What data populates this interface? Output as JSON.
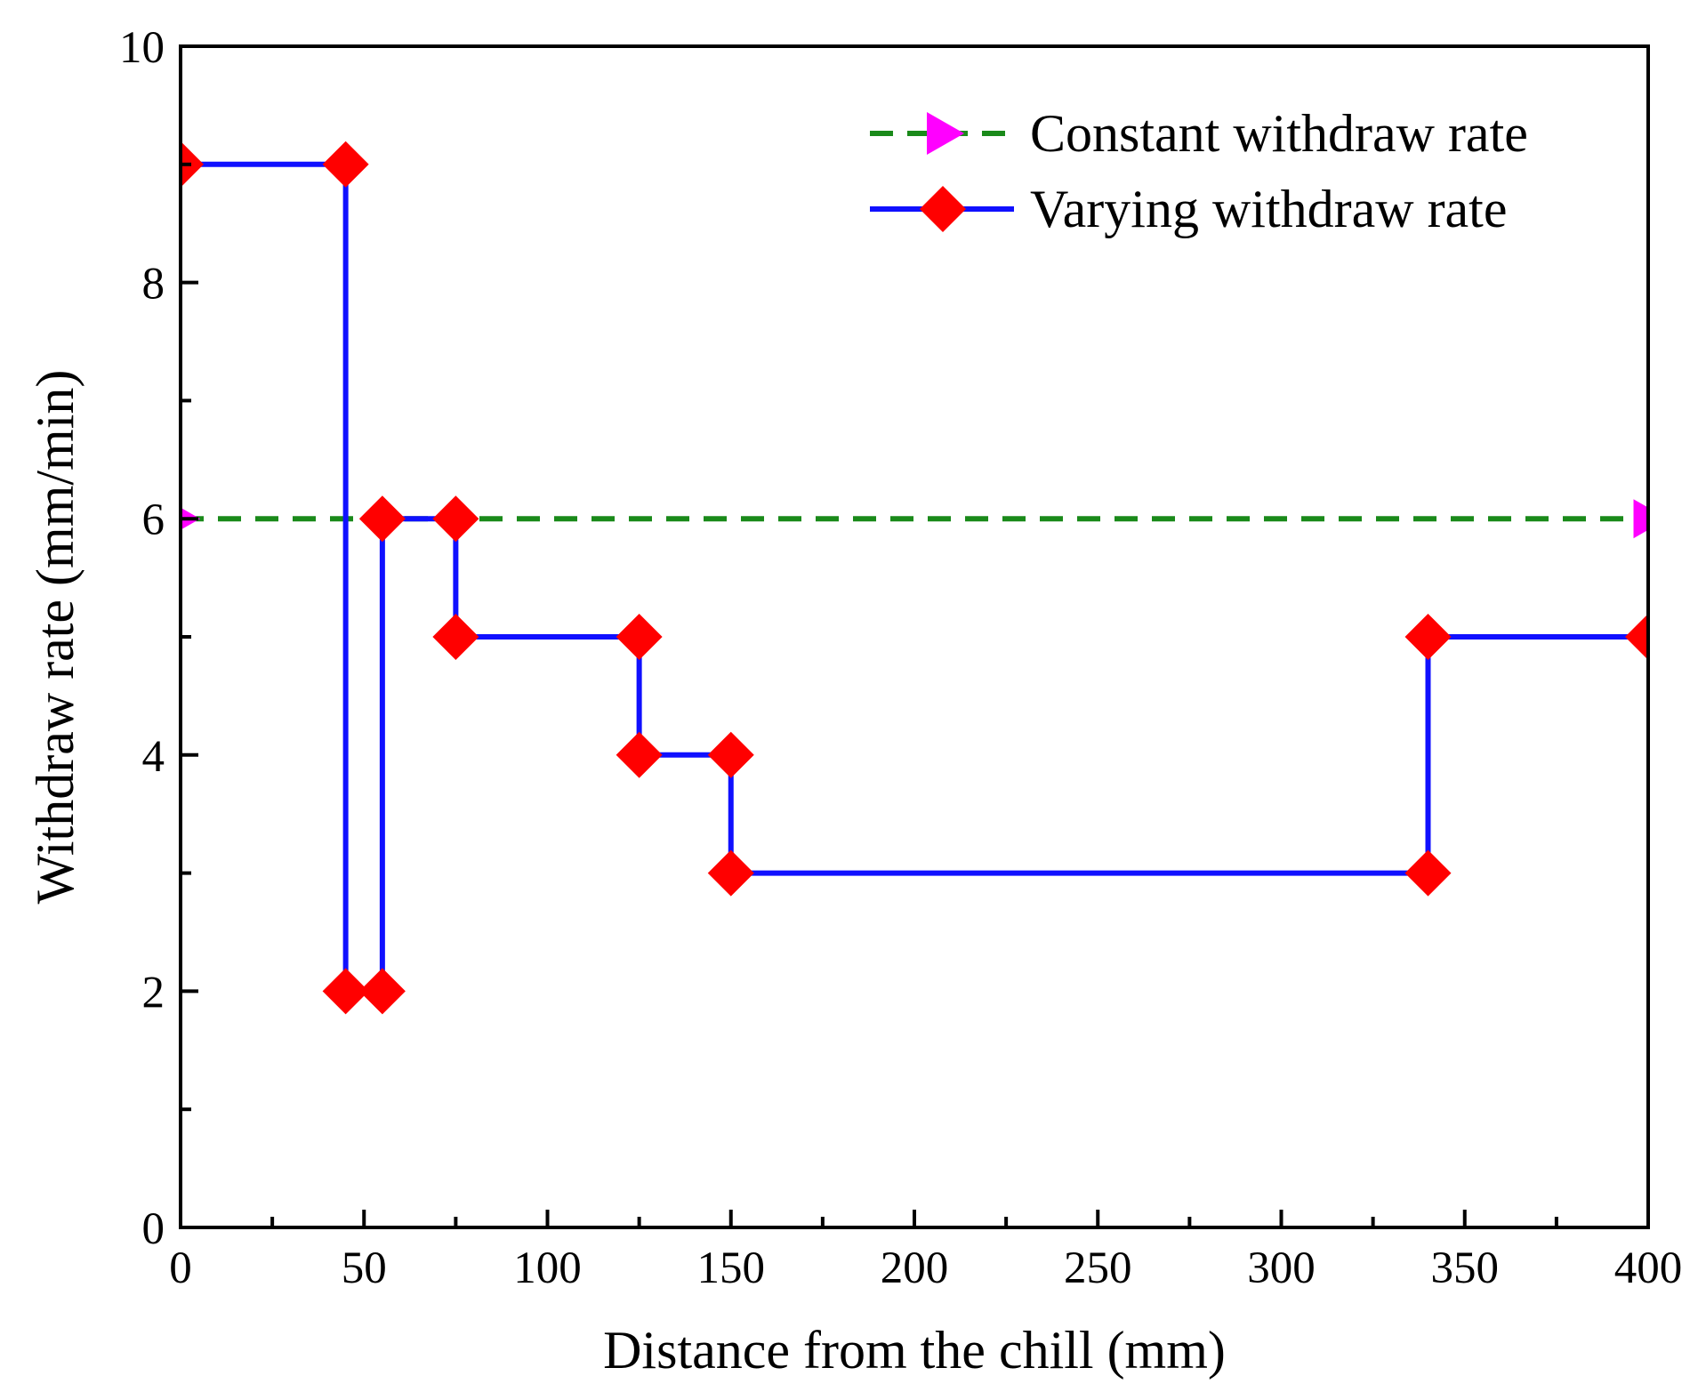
{
  "chart_data": {
    "type": "line",
    "xlabel": "Distance from the chill (mm)",
    "ylabel": "Withdraw rate (mm/min)",
    "xlim": [
      0,
      400
    ],
    "ylim": [
      0,
      10
    ],
    "x_ticks": [
      "0",
      "50",
      "100",
      "150",
      "200",
      "250",
      "300",
      "350",
      "400"
    ],
    "y_ticks": [
      "0",
      "2",
      "4",
      "6",
      "8",
      "10"
    ],
    "grid": false,
    "legend_position": "top-right",
    "series": [
      {
        "name": "Constant withdraw rate",
        "color": "#1a8a1a",
        "marker_color": "#ff00ff",
        "line_style": "dashed",
        "marker": "triangle-right",
        "points": [
          [
            0,
            6
          ],
          [
            400,
            6
          ]
        ]
      },
      {
        "name": "Varying withdraw rate",
        "color": "#1010ff",
        "marker_color": "#ff0000",
        "line_style": "solid-step",
        "marker": "diamond",
        "points": [
          [
            0,
            9
          ],
          [
            45,
            9
          ],
          [
            45,
            2
          ],
          [
            55,
            2
          ],
          [
            55,
            6
          ],
          [
            75,
            6
          ],
          [
            75,
            5
          ],
          [
            125,
            5
          ],
          [
            125,
            4
          ],
          [
            150,
            4
          ],
          [
            150,
            3
          ],
          [
            340,
            3
          ],
          [
            340,
            5
          ],
          [
            400,
            5
          ]
        ]
      }
    ]
  }
}
